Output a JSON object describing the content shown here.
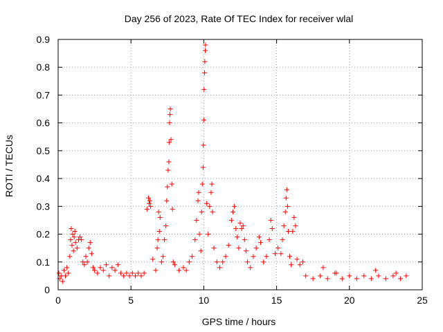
{
  "chart_data": {
    "type": "scatter",
    "title": "Day 256 of 2023, Rate Of TEC Index for receiver wlal",
    "xlabel": "GPS time / hours",
    "ylabel": "ROTI / TECUs",
    "xlim": [
      0,
      25
    ],
    "ylim": [
      0,
      0.9
    ],
    "x_ticks": [
      "0",
      "5",
      "10",
      "15",
      "20",
      "25"
    ],
    "y_ticks": [
      "0",
      "0.1",
      "0.2",
      "0.3",
      "0.4",
      "0.5",
      "0.6",
      "0.7",
      "0.8",
      "0.9"
    ],
    "grid": true,
    "marker": "+",
    "series": [
      {
        "color": "#ff0000",
        "points": [
          [
            0.05,
            0.06
          ],
          [
            0.1,
            0.04
          ],
          [
            0.2,
            0.05
          ],
          [
            0.3,
            0.03
          ],
          [
            0.4,
            0.07
          ],
          [
            0.5,
            0.05
          ],
          [
            0.6,
            0.08
          ],
          [
            0.7,
            0.06
          ],
          [
            0.8,
            0.12
          ],
          [
            0.85,
            0.18
          ],
          [
            0.9,
            0.22
          ],
          [
            0.95,
            0.16
          ],
          [
            1.0,
            0.2
          ],
          [
            1.05,
            0.14
          ],
          [
            1.1,
            0.19
          ],
          [
            1.15,
            0.21
          ],
          [
            1.2,
            0.17
          ],
          [
            1.3,
            0.15
          ],
          [
            1.4,
            0.18
          ],
          [
            1.5,
            0.19
          ],
          [
            1.6,
            0.18
          ],
          [
            1.7,
            0.1
          ],
          [
            1.8,
            0.09
          ],
          [
            1.9,
            0.12
          ],
          [
            2.0,
            0.1
          ],
          [
            2.1,
            0.15
          ],
          [
            2.2,
            0.17
          ],
          [
            2.3,
            0.13
          ],
          [
            2.4,
            0.08
          ],
          [
            2.5,
            0.07
          ],
          [
            2.7,
            0.06
          ],
          [
            2.9,
            0.08
          ],
          [
            3.1,
            0.07
          ],
          [
            3.3,
            0.09
          ],
          [
            3.5,
            0.05
          ],
          [
            3.7,
            0.08
          ],
          [
            3.9,
            0.07
          ],
          [
            4.1,
            0.09
          ],
          [
            4.3,
            0.06
          ],
          [
            4.5,
            0.05
          ],
          [
            4.7,
            0.06
          ],
          [
            4.9,
            0.05
          ],
          [
            5.1,
            0.06
          ],
          [
            5.3,
            0.05
          ],
          [
            5.5,
            0.06
          ],
          [
            5.7,
            0.05
          ],
          [
            5.9,
            0.06
          ],
          [
            6.1,
            0.29
          ],
          [
            6.2,
            0.33
          ],
          [
            6.25,
            0.31
          ],
          [
            6.3,
            0.32
          ],
          [
            6.35,
            0.3
          ],
          [
            6.5,
            0.11
          ],
          [
            6.7,
            0.07
          ],
          [
            6.8,
            0.15
          ],
          [
            6.85,
            0.18
          ],
          [
            6.9,
            0.28
          ],
          [
            6.95,
            0.21
          ],
          [
            7.0,
            0.26
          ],
          [
            7.1,
            0.1
          ],
          [
            7.2,
            0.12
          ],
          [
            7.3,
            0.18
          ],
          [
            7.4,
            0.23
          ],
          [
            7.45,
            0.32
          ],
          [
            7.5,
            0.37
          ],
          [
            7.55,
            0.43
          ],
          [
            7.6,
            0.46
          ],
          [
            7.62,
            0.53
          ],
          [
            7.65,
            0.6
          ],
          [
            7.68,
            0.63
          ],
          [
            7.7,
            0.65
          ],
          [
            7.75,
            0.54
          ],
          [
            7.8,
            0.38
          ],
          [
            7.85,
            0.29
          ],
          [
            7.9,
            0.1
          ],
          [
            8.0,
            0.09
          ],
          [
            8.3,
            0.07
          ],
          [
            8.6,
            0.08
          ],
          [
            8.8,
            0.07
          ],
          [
            9.0,
            0.1
          ],
          [
            9.2,
            0.12
          ],
          [
            9.4,
            0.18
          ],
          [
            9.5,
            0.25
          ],
          [
            9.6,
            0.32
          ],
          [
            9.65,
            0.35
          ],
          [
            9.7,
            0.2
          ],
          [
            9.8,
            0.14
          ],
          [
            9.85,
            0.28
          ],
          [
            9.9,
            0.38
          ],
          [
            9.95,
            0.44
          ],
          [
            9.97,
            0.52
          ],
          [
            10.0,
            0.61
          ],
          [
            10.02,
            0.72
          ],
          [
            10.05,
            0.78
          ],
          [
            10.07,
            0.82
          ],
          [
            10.1,
            0.86
          ],
          [
            10.12,
            0.88
          ],
          [
            10.2,
            0.31
          ],
          [
            10.3,
            0.2
          ],
          [
            10.4,
            0.3
          ],
          [
            10.5,
            0.35
          ],
          [
            10.55,
            0.38
          ],
          [
            10.6,
            0.28
          ],
          [
            10.7,
            0.15
          ],
          [
            10.9,
            0.1
          ],
          [
            11.1,
            0.08
          ],
          [
            11.3,
            0.1
          ],
          [
            11.5,
            0.12
          ],
          [
            11.7,
            0.16
          ],
          [
            11.9,
            0.25
          ],
          [
            12.0,
            0.28
          ],
          [
            12.1,
            0.3
          ],
          [
            12.2,
            0.22
          ],
          [
            12.3,
            0.19
          ],
          [
            12.4,
            0.15
          ],
          [
            12.5,
            0.24
          ],
          [
            12.6,
            0.22
          ],
          [
            12.7,
            0.23
          ],
          [
            12.8,
            0.18
          ],
          [
            12.9,
            0.14
          ],
          [
            13.0,
            0.1
          ],
          [
            13.2,
            0.08
          ],
          [
            13.4,
            0.12
          ],
          [
            13.6,
            0.15
          ],
          [
            13.8,
            0.19
          ],
          [
            13.9,
            0.17
          ],
          [
            14.1,
            0.1
          ],
          [
            14.3,
            0.12
          ],
          [
            14.5,
            0.18
          ],
          [
            14.6,
            0.25
          ],
          [
            14.7,
            0.22
          ],
          [
            14.9,
            0.13
          ],
          [
            15.1,
            0.15
          ],
          [
            15.3,
            0.13
          ],
          [
            15.4,
            0.18
          ],
          [
            15.5,
            0.23
          ],
          [
            15.6,
            0.28
          ],
          [
            15.65,
            0.33
          ],
          [
            15.7,
            0.36
          ],
          [
            15.75,
            0.3
          ],
          [
            15.8,
            0.21
          ],
          [
            15.9,
            0.12
          ],
          [
            16.0,
            0.09
          ],
          [
            16.1,
            0.21
          ],
          [
            16.2,
            0.26
          ],
          [
            16.3,
            0.23
          ],
          [
            16.4,
            0.11
          ],
          [
            16.6,
            0.09
          ],
          [
            16.8,
            0.1
          ],
          [
            17.0,
            0.05
          ],
          [
            17.5,
            0.04
          ],
          [
            18.0,
            0.05
          ],
          [
            18.5,
            0.04
          ],
          [
            19.0,
            0.06
          ],
          [
            19.5,
            0.04
          ],
          [
            20.0,
            0.05
          ],
          [
            20.5,
            0.04
          ],
          [
            21.0,
            0.05
          ],
          [
            21.5,
            0.04
          ],
          [
            22.0,
            0.05
          ],
          [
            22.5,
            0.04
          ],
          [
            23.0,
            0.05
          ],
          [
            23.5,
            0.04
          ],
          [
            23.9,
            0.05
          ],
          [
            18.2,
            0.08
          ],
          [
            19.1,
            0.06
          ],
          [
            21.8,
            0.07
          ],
          [
            23.2,
            0.06
          ]
        ]
      }
    ]
  }
}
